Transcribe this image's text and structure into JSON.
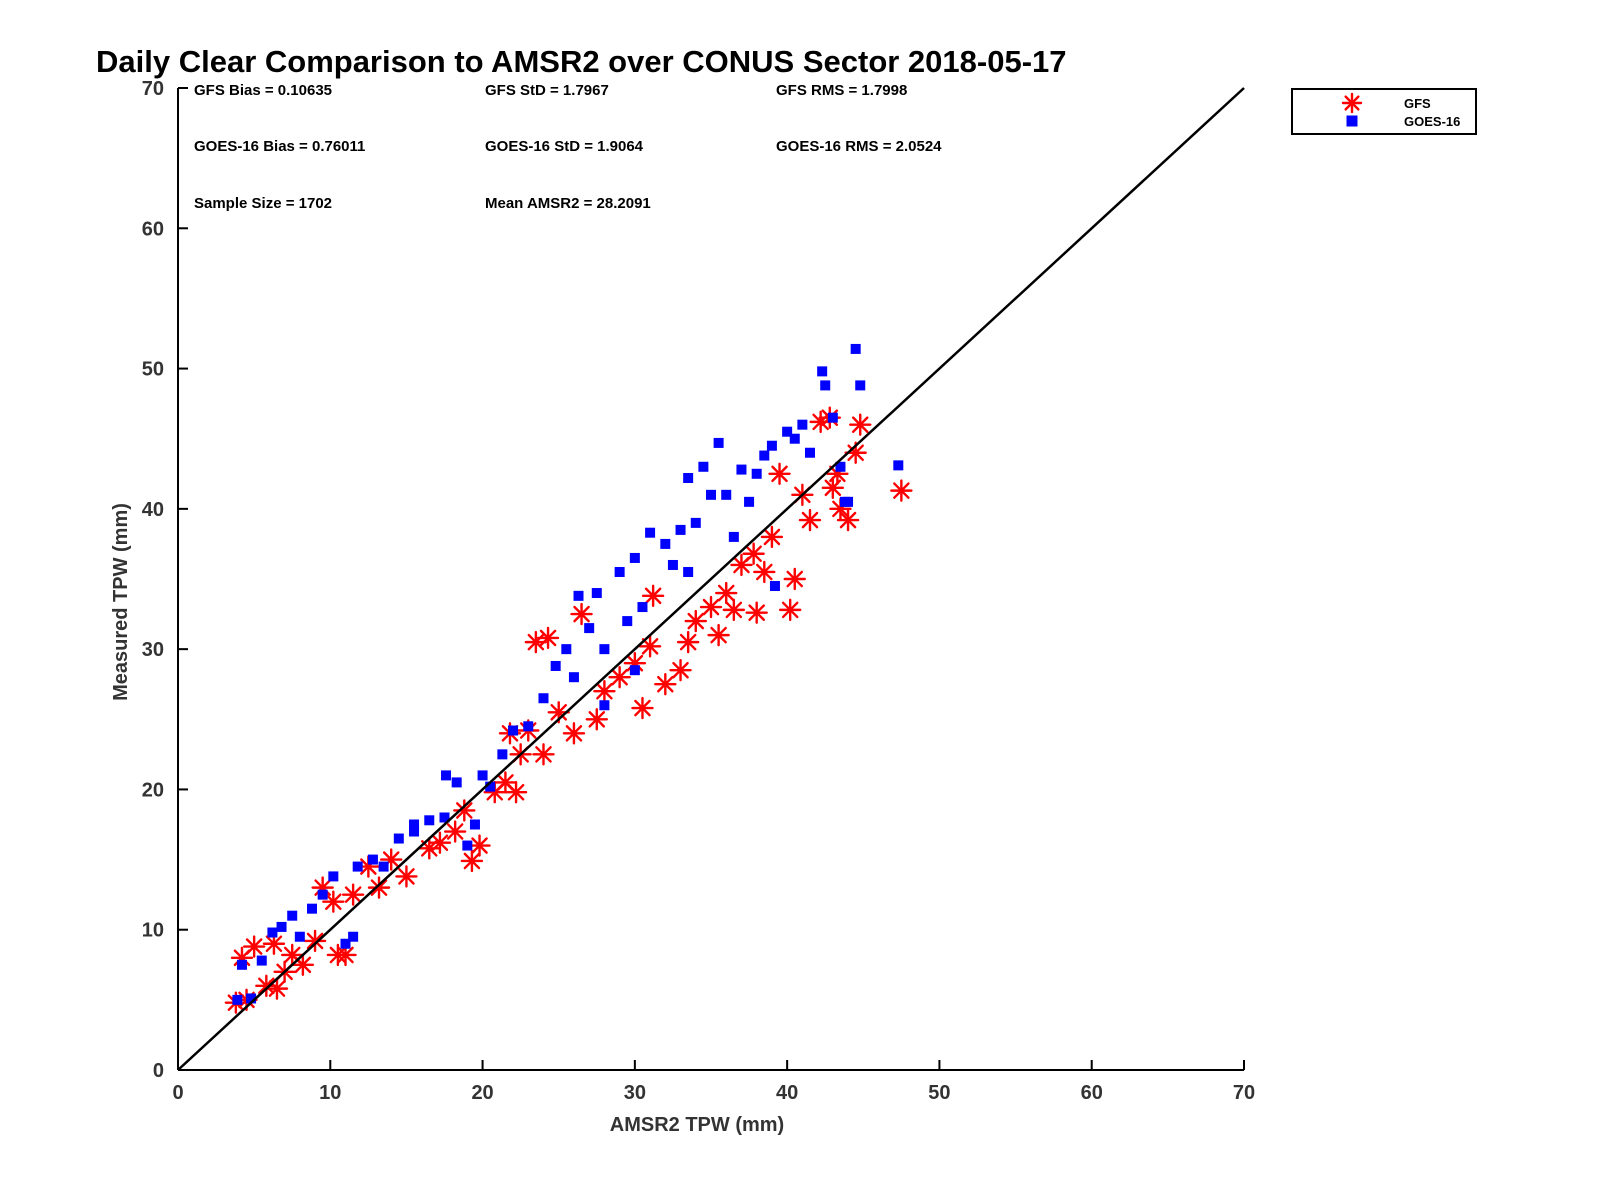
{
  "chart_data": {
    "type": "scatter",
    "title": "Daily Clear Comparison to AMSR2 over CONUS Sector 2018-05-17",
    "xlabel": "AMSR2 TPW (mm)",
    "ylabel": "Measured TPW (mm)",
    "xlim": [
      0,
      70
    ],
    "ylim": [
      0,
      70
    ],
    "xticks": [
      "0",
      "10",
      "20",
      "30",
      "40",
      "50",
      "60",
      "70"
    ],
    "yticks": [
      "0",
      "10",
      "20",
      "30",
      "40",
      "50",
      "60",
      "70"
    ],
    "grid": false,
    "legend_position": "outside-top-right",
    "reference_line": {
      "from": [
        0,
        0
      ],
      "to": [
        70,
        70
      ],
      "color": "#000000"
    },
    "stats": [
      "GFS Bias = 0.10635",
      "GFS StD = 1.7967",
      "GFS RMS = 1.7998",
      "GOES-16 Bias = 0.76011",
      "GOES-16 StD = 1.9064",
      "GOES-16 RMS = 2.0524",
      "Sample Size = 1702",
      "Mean AMSR2 = 28.2091"
    ],
    "series": [
      {
        "name": "GFS",
        "marker": "asterisk",
        "color": "#ff0000",
        "points": [
          [
            3.8,
            4.8
          ],
          [
            4.5,
            5.0
          ],
          [
            4.2,
            8.0
          ],
          [
            5.0,
            8.8
          ],
          [
            5.8,
            6.0
          ],
          [
            6.5,
            5.8
          ],
          [
            6.3,
            9.0
          ],
          [
            7.0,
            7.0
          ],
          [
            7.5,
            8.2
          ],
          [
            8.2,
            7.5
          ],
          [
            9.0,
            9.2
          ],
          [
            10.5,
            8.2
          ],
          [
            11.0,
            8.2
          ],
          [
            9.5,
            13.0
          ],
          [
            10.2,
            12.0
          ],
          [
            11.5,
            12.5
          ],
          [
            12.5,
            14.5
          ],
          [
            13.2,
            13.0
          ],
          [
            14.0,
            15.0
          ],
          [
            15.0,
            13.8
          ],
          [
            16.5,
            15.8
          ],
          [
            17.2,
            16.2
          ],
          [
            18.2,
            17.0
          ],
          [
            18.8,
            18.5
          ],
          [
            19.3,
            14.9
          ],
          [
            19.8,
            16.0
          ],
          [
            20.8,
            19.8
          ],
          [
            21.5,
            20.5
          ],
          [
            22.2,
            19.8
          ],
          [
            22.5,
            22.5
          ],
          [
            21.8,
            24.0
          ],
          [
            23.0,
            24.2
          ],
          [
            24.0,
            22.5
          ],
          [
            23.5,
            30.5
          ],
          [
            24.3,
            30.8
          ],
          [
            25.0,
            25.5
          ],
          [
            26.0,
            24.0
          ],
          [
            26.5,
            32.5
          ],
          [
            27.5,
            25.0
          ],
          [
            28.0,
            27.0
          ],
          [
            29.0,
            28.0
          ],
          [
            30.0,
            29.0
          ],
          [
            31.0,
            30.2
          ],
          [
            31.2,
            33.8
          ],
          [
            30.5,
            25.8
          ],
          [
            32.0,
            27.5
          ],
          [
            33.0,
            28.5
          ],
          [
            33.5,
            30.5
          ],
          [
            34.0,
            32.0
          ],
          [
            35.0,
            33.0
          ],
          [
            35.5,
            31.0
          ],
          [
            36.0,
            34.0
          ],
          [
            36.5,
            32.8
          ],
          [
            37.0,
            36.0
          ],
          [
            38.0,
            32.6
          ],
          [
            38.5,
            35.5
          ],
          [
            39.0,
            38.0
          ],
          [
            40.2,
            32.8
          ],
          [
            40.5,
            35.0
          ],
          [
            41.5,
            39.2
          ],
          [
            42.2,
            46.2
          ],
          [
            42.8,
            46.5
          ],
          [
            43.0,
            41.5
          ],
          [
            43.3,
            42.5
          ],
          [
            43.5,
            40.0
          ],
          [
            44.0,
            39.2
          ],
          [
            44.5,
            44.0
          ],
          [
            44.8,
            46.0
          ],
          [
            47.5,
            41.3
          ],
          [
            41.0,
            41.0
          ],
          [
            39.5,
            42.5
          ],
          [
            37.8,
            36.8
          ]
        ]
      },
      {
        "name": "GOES-16",
        "marker": "square",
        "color": "#0000ff",
        "points": [
          [
            3.9,
            5.0
          ],
          [
            4.8,
            5.1
          ],
          [
            4.2,
            7.5
          ],
          [
            5.5,
            7.8
          ],
          [
            6.2,
            9.8
          ],
          [
            6.8,
            10.2
          ],
          [
            7.5,
            11.0
          ],
          [
            8.0,
            9.5
          ],
          [
            8.8,
            11.5
          ],
          [
            9.5,
            12.5
          ],
          [
            10.2,
            13.8
          ],
          [
            11.0,
            9.0
          ],
          [
            11.5,
            9.5
          ],
          [
            11.8,
            14.5
          ],
          [
            12.8,
            15.0
          ],
          [
            13.5,
            14.5
          ],
          [
            14.5,
            16.5
          ],
          [
            15.5,
            17.5
          ],
          [
            16.5,
            17.8
          ],
          [
            17.5,
            18.0
          ],
          [
            17.6,
            21.0
          ],
          [
            18.3,
            20.5
          ],
          [
            19.5,
            17.5
          ],
          [
            19.0,
            16.0
          ],
          [
            20.5,
            20.2
          ],
          [
            21.3,
            22.5
          ],
          [
            22.0,
            24.2
          ],
          [
            23.0,
            24.5
          ],
          [
            24.0,
            26.5
          ],
          [
            24.8,
            28.8
          ],
          [
            25.5,
            30.0
          ],
          [
            26.3,
            33.8
          ],
          [
            27.0,
            31.5
          ],
          [
            27.5,
            34.0
          ],
          [
            28.0,
            30.0
          ],
          [
            29.0,
            35.5
          ],
          [
            29.5,
            32.0
          ],
          [
            30.0,
            36.5
          ],
          [
            30.5,
            33.0
          ],
          [
            31.0,
            38.3
          ],
          [
            32.0,
            37.5
          ],
          [
            32.5,
            36.0
          ],
          [
            33.0,
            38.5
          ],
          [
            33.5,
            42.2
          ],
          [
            34.0,
            39.0
          ],
          [
            34.5,
            43.0
          ],
          [
            35.0,
            41.0
          ],
          [
            35.5,
            44.7
          ],
          [
            36.0,
            41.0
          ],
          [
            37.0,
            42.8
          ],
          [
            37.5,
            40.5
          ],
          [
            38.0,
            42.5
          ],
          [
            38.5,
            43.8
          ],
          [
            39.0,
            44.5
          ],
          [
            40.0,
            45.5
          ],
          [
            40.5,
            45.0
          ],
          [
            41.0,
            46.0
          ],
          [
            41.5,
            44.0
          ],
          [
            42.3,
            49.8
          ],
          [
            42.5,
            48.8
          ],
          [
            43.0,
            46.5
          ],
          [
            43.5,
            43.0
          ],
          [
            43.8,
            40.5
          ],
          [
            44.0,
            40.5
          ],
          [
            44.5,
            51.4
          ],
          [
            44.8,
            48.8
          ],
          [
            47.3,
            43.1
          ],
          [
            39.2,
            34.5
          ],
          [
            36.5,
            38.0
          ],
          [
            33.5,
            35.5
          ],
          [
            30.0,
            28.5
          ],
          [
            28.0,
            26.0
          ],
          [
            26.0,
            28.0
          ],
          [
            20.0,
            21.0
          ],
          [
            15.5,
            17.0
          ]
        ]
      }
    ]
  }
}
